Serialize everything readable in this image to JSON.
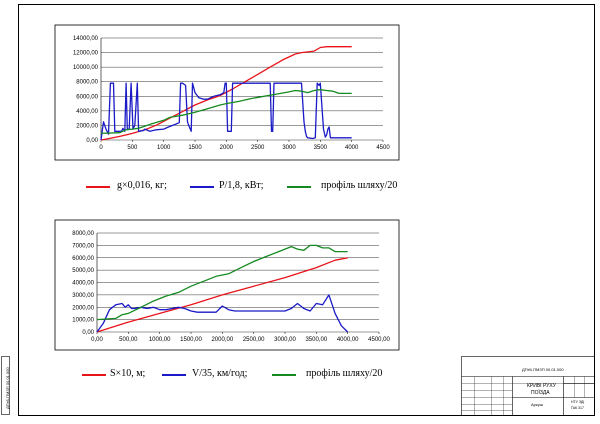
{
  "colors": {
    "red": "#e8141a",
    "blue": "#1a1ac8",
    "green": "#158a20",
    "frame": "#000000"
  },
  "chart_data": [
    {
      "type": "line",
      "xlim": [
        0,
        4500
      ],
      "ylim": [
        0,
        14000
      ],
      "x_ticks": [
        "0",
        "500",
        "1000",
        "1500",
        "2000",
        "2500",
        "3000",
        "3500",
        "4000",
        "4500"
      ],
      "y_ticks": [
        "0,00",
        "2000,00",
        "4000,00",
        "6000,00",
        "8000,00",
        "10000,00",
        "12000,00",
        "14000,00"
      ],
      "grid": "horizontal",
      "legend": "below",
      "series": [
        {
          "name": "g×0,016, кг;",
          "color": "red",
          "points": [
            [
              0,
              0
            ],
            [
              100,
              150
            ],
            [
              300,
              500
            ],
            [
              500,
              900
            ],
            [
              700,
              1400
            ],
            [
              900,
              2100
            ],
            [
              1100,
              3000
            ],
            [
              1300,
              3900
            ],
            [
              1500,
              4800
            ],
            [
              1700,
              5500
            ],
            [
              1900,
              6100
            ],
            [
              2100,
              7000
            ],
            [
              2300,
              8000
            ],
            [
              2500,
              9000
            ],
            [
              2700,
              10000
            ],
            [
              2900,
              11000
            ],
            [
              3100,
              11800
            ],
            [
              3200,
              12000
            ],
            [
              3400,
              12200
            ],
            [
              3500,
              12700
            ],
            [
              3600,
              12800
            ],
            [
              4000,
              12800
            ]
          ]
        },
        {
          "name": "P/1,8, кВт;",
          "color": "blue",
          "points": [
            [
              0,
              0
            ],
            [
              40,
              2500
            ],
            [
              80,
              1500
            ],
            [
              120,
              800
            ],
            [
              150,
              7800
            ],
            [
              200,
              7800
            ],
            [
              220,
              1200
            ],
            [
              330,
              1200
            ],
            [
              350,
              1600
            ],
            [
              380,
              1200
            ],
            [
              400,
              7800
            ],
            [
              420,
              1500
            ],
            [
              450,
              1500
            ],
            [
              480,
              7800
            ],
            [
              510,
              1500
            ],
            [
              540,
              2000
            ],
            [
              580,
              7800
            ],
            [
              600,
              1200
            ],
            [
              680,
              1300
            ],
            [
              700,
              1500
            ],
            [
              780,
              1200
            ],
            [
              880,
              1400
            ],
            [
              1000,
              1500
            ],
            [
              1080,
              1800
            ],
            [
              1200,
              2200
            ],
            [
              1250,
              2400
            ],
            [
              1270,
              7800
            ],
            [
              1300,
              7800
            ],
            [
              1350,
              7500
            ],
            [
              1380,
              2500
            ],
            [
              1400,
              2000
            ],
            [
              1440,
              1200
            ],
            [
              1460,
              7800
            ],
            [
              1500,
              6500
            ],
            [
              1560,
              5800
            ],
            [
              1640,
              5600
            ],
            [
              1700,
              5600
            ],
            [
              1750,
              5800
            ],
            [
              1800,
              6000
            ],
            [
              1900,
              6200
            ],
            [
              1960,
              6500
            ],
            [
              1980,
              7800
            ],
            [
              2000,
              7800
            ],
            [
              2020,
              1200
            ],
            [
              2080,
              1200
            ],
            [
              2100,
              7800
            ],
            [
              2700,
              7800
            ],
            [
              2720,
              1200
            ],
            [
              2740,
              1200
            ],
            [
              2760,
              7800
            ],
            [
              3200,
              7800
            ],
            [
              3240,
              2500
            ],
            [
              3260,
              1200
            ],
            [
              3280,
              500
            ],
            [
              3300,
              300
            ],
            [
              3380,
              200
            ],
            [
              3420,
              300
            ],
            [
              3450,
              7800
            ],
            [
              3480,
              7500
            ],
            [
              3500,
              7800
            ],
            [
              3550,
              1500
            ],
            [
              3580,
              400
            ],
            [
              3600,
              700
            ],
            [
              3620,
              1500
            ],
            [
              3640,
              1800
            ],
            [
              3660,
              300
            ],
            [
              3800,
              300
            ],
            [
              4000,
              300
            ]
          ]
        },
        {
          "name": "профіль шляху/20",
          "color": "green",
          "points": [
            [
              0,
              900
            ],
            [
              300,
              1000
            ],
            [
              400,
              1400
            ],
            [
              500,
              1500
            ],
            [
              600,
              1600
            ],
            [
              800,
              2200
            ],
            [
              1000,
              2700
            ],
            [
              1100,
              3100
            ],
            [
              1300,
              3400
            ],
            [
              1500,
              3800
            ],
            [
              1700,
              4300
            ],
            [
              1900,
              4800
            ],
            [
              2000,
              5000
            ],
            [
              2200,
              5300
            ],
            [
              2400,
              5700
            ],
            [
              2600,
              6000
            ],
            [
              2800,
              6300
            ],
            [
              3000,
              6600
            ],
            [
              3100,
              6800
            ],
            [
              3200,
              6700
            ],
            [
              3300,
              6500
            ],
            [
              3400,
              6800
            ],
            [
              3500,
              6900
            ],
            [
              3600,
              6800
            ],
            [
              3700,
              6700
            ],
            [
              3800,
              6400
            ],
            [
              4000,
              6400
            ]
          ]
        }
      ]
    },
    {
      "type": "line",
      "xlim": [
        0,
        4500
      ],
      "ylim": [
        0,
        8000
      ],
      "x_ticks": [
        "0,00",
        "500,00",
        "1000,00",
        "1500,00",
        "2000,00",
        "2500,00",
        "3000,00",
        "3500,00",
        "4000,00",
        "4500,00"
      ],
      "y_ticks": [
        "0,00",
        "1000,00",
        "2000,00",
        "3000,00",
        "4000,00",
        "5000,00",
        "6000,00",
        "7000,00",
        "8000,00"
      ],
      "grid": "horizontal",
      "legend": "below",
      "series": [
        {
          "name": "S×10, м;",
          "color": "red",
          "points": [
            [
              0,
              0
            ],
            [
              500,
              800
            ],
            [
              1000,
              1500
            ],
            [
              1500,
              2200
            ],
            [
              2000,
              3000
            ],
            [
              2500,
              3700
            ],
            [
              3000,
              4400
            ],
            [
              3500,
              5200
            ],
            [
              3800,
              5800
            ],
            [
              4000,
              6000
            ]
          ]
        },
        {
          "name": "V/35, км/год;",
          "color": "blue",
          "points": [
            [
              0,
              0
            ],
            [
              100,
              700
            ],
            [
              200,
              1800
            ],
            [
              300,
              2200
            ],
            [
              400,
              2300
            ],
            [
              450,
              2000
            ],
            [
              500,
              2200
            ],
            [
              550,
              1900
            ],
            [
              600,
              1900
            ],
            [
              700,
              2000
            ],
            [
              800,
              1900
            ],
            [
              900,
              2000
            ],
            [
              1000,
              1800
            ],
            [
              1100,
              1800
            ],
            [
              1200,
              1900
            ],
            [
              1300,
              2000
            ],
            [
              1400,
              1900
            ],
            [
              1500,
              1700
            ],
            [
              1600,
              1600
            ],
            [
              1700,
              1600
            ],
            [
              1800,
              1600
            ],
            [
              1900,
              1600
            ],
            [
              2000,
              2100
            ],
            [
              2100,
              1800
            ],
            [
              2200,
              1700
            ],
            [
              2400,
              1700
            ],
            [
              2600,
              1700
            ],
            [
              2800,
              1700
            ],
            [
              3000,
              1700
            ],
            [
              3100,
              1900
            ],
            [
              3200,
              2300
            ],
            [
              3300,
              1900
            ],
            [
              3400,
              1700
            ],
            [
              3500,
              2300
            ],
            [
              3600,
              2200
            ],
            [
              3700,
              3000
            ],
            [
              3800,
              1500
            ],
            [
              3900,
              500
            ],
            [
              4000,
              0
            ]
          ]
        },
        {
          "name": "профіль шляху/20",
          "color": "green",
          "points": [
            [
              0,
              1000
            ],
            [
              300,
              1100
            ],
            [
              400,
              1400
            ],
            [
              500,
              1500
            ],
            [
              700,
              2000
            ],
            [
              900,
              2500
            ],
            [
              1100,
              2900
            ],
            [
              1300,
              3200
            ],
            [
              1500,
              3700
            ],
            [
              1700,
              4100
            ],
            [
              1900,
              4500
            ],
            [
              2100,
              4700
            ],
            [
              2300,
              5200
            ],
            [
              2500,
              5700
            ],
            [
              2700,
              6100
            ],
            [
              2900,
              6500
            ],
            [
              3100,
              6900
            ],
            [
              3200,
              6700
            ],
            [
              3300,
              6600
            ],
            [
              3400,
              7000
            ],
            [
              3500,
              7000
            ],
            [
              3600,
              6800
            ],
            [
              3700,
              6800
            ],
            [
              3800,
              6500
            ],
            [
              4000,
              6500
            ]
          ]
        }
      ]
    }
  ],
  "title_block": {
    "doc_code": "ДПтБ.ПМЗП 00.01.000",
    "title_line1": "КРИВІ РУХУ",
    "title_line2": "ПОЇЗДА",
    "sheet_word": "Аркуш",
    "dept": "НТУ ЗДІ",
    "group": "ҐАК 317"
  },
  "side_stamp": "ДПтБ.ПМЗП 00.01.000"
}
